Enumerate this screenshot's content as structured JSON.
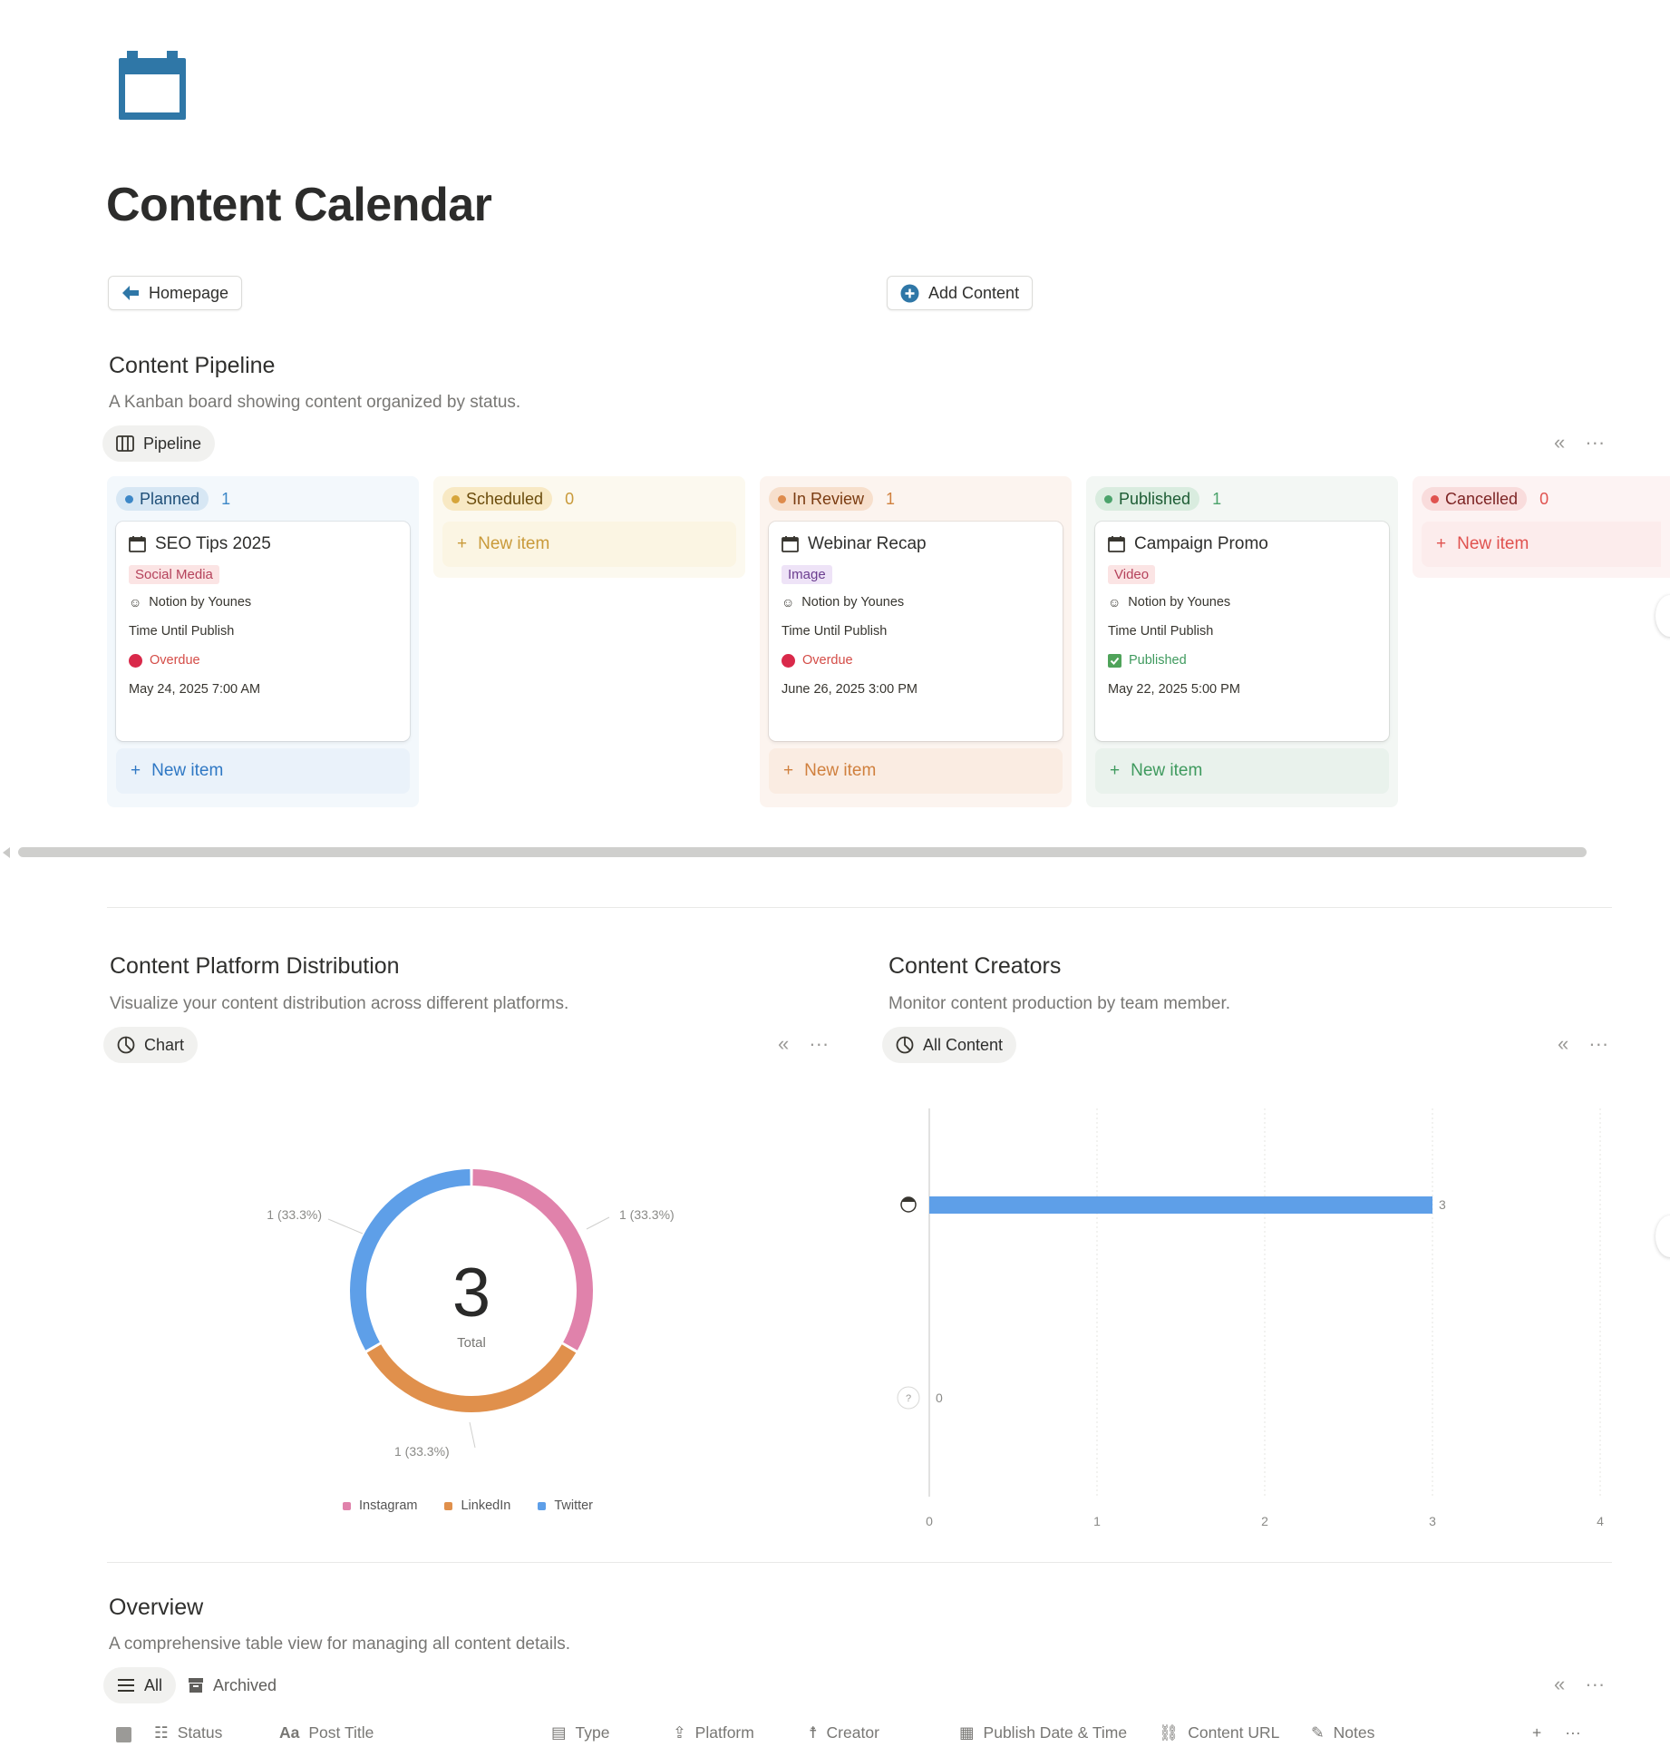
{
  "page": {
    "title": "Content Calendar",
    "icon": "calendar-icon",
    "buttons": {
      "homepage": "Homepage",
      "add_content": "Add Content"
    }
  },
  "pipeline": {
    "title": "Content Pipeline",
    "description": "A Kanban board showing content organized by status.",
    "view_tab": "Pipeline",
    "columns": [
      {
        "label": "Planned",
        "count": "1",
        "cards": [
          {
            "title": "SEO Tips 2025",
            "tag": "Social Media",
            "creator": "Notion by Younes",
            "time_label": "Time Until Publish",
            "state": "Overdue",
            "date": "May 24, 2025 7:00 AM"
          }
        ],
        "new_item": "New item"
      },
      {
        "label": "Scheduled",
        "count": "0",
        "cards": [],
        "new_item": "New item"
      },
      {
        "label": "In Review",
        "count": "1",
        "cards": [
          {
            "title": "Webinar Recap",
            "tag": "Image",
            "creator": "Notion by Younes",
            "time_label": "Time Until Publish",
            "state": "Overdue",
            "date": "June 26, 2025 3:00 PM"
          }
        ],
        "new_item": "New item"
      },
      {
        "label": "Published",
        "count": "1",
        "cards": [
          {
            "title": "Campaign Promo",
            "tag": "Video",
            "creator": "Notion by Younes",
            "time_label": "Time Until Publish",
            "state": "Published",
            "date": "May 22, 2025 5:00 PM"
          }
        ],
        "new_item": "New item"
      },
      {
        "label": "Cancelled",
        "count": "0",
        "cards": [],
        "new_item": "New item"
      }
    ]
  },
  "platform": {
    "title": "Content Platform Distribution",
    "description": "Visualize your content distribution across different platforms.",
    "view_tab": "Chart"
  },
  "creators": {
    "title": "Content Creators",
    "description": "Monitor content production by team member.",
    "view_tab": "All Content"
  },
  "chart_data": [
    {
      "type": "pie",
      "variant": "donut",
      "center_value": "3",
      "center_label": "Total",
      "slices": [
        {
          "name": "Instagram",
          "value": 1,
          "label": "1 (33.3%)",
          "color": "#e082ab"
        },
        {
          "name": "LinkedIn",
          "value": 1,
          "label": "1 (33.3%)",
          "color": "#e0904c"
        },
        {
          "name": "Twitter",
          "value": 1,
          "label": "1 (33.3%)",
          "color": "#5e9fe8"
        }
      ],
      "legend": [
        "Instagram",
        "LinkedIn",
        "Twitter"
      ],
      "legend_position": "bottom"
    },
    {
      "type": "bar",
      "orientation": "horizontal",
      "categories": [
        "creator-avatar",
        "?"
      ],
      "values": [
        3,
        0
      ],
      "value_labels": [
        "3",
        "0"
      ],
      "x_ticks": [
        "0",
        "1",
        "2",
        "3",
        "4"
      ],
      "xlim": [
        0,
        4
      ],
      "grid": true,
      "color": "#5e9fe8"
    }
  ],
  "overview": {
    "title": "Overview",
    "description": "A comprehensive table view for managing all content details.",
    "tabs": [
      "All",
      "Archived"
    ],
    "columns": [
      "Status",
      "Post Title",
      "Type",
      "Platform",
      "Creator",
      "Publish Date & Time",
      "Content URL",
      "Notes"
    ]
  }
}
